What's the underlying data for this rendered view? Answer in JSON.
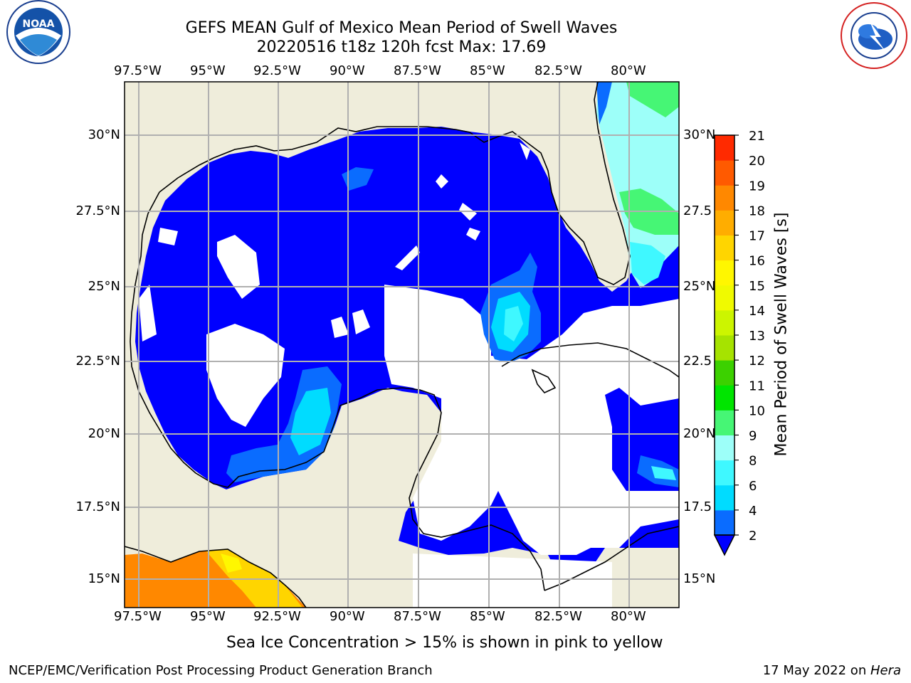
{
  "title_line1": "GEFS MEAN Gulf of Mexico Mean Period of Swell Waves",
  "title_line2": "20220516 t18z 120h fcst   Max: 17.69",
  "logos": {
    "left": "noaa-logo",
    "right": "nws-logo"
  },
  "map": {
    "lon_labels": [
      "97.5°W",
      "95°W",
      "92.5°W",
      "90°W",
      "87.5°W",
      "85°W",
      "82.5°W",
      "80°W"
    ],
    "lat_labels_left": [
      "30°N",
      "27.5°N",
      "25°N",
      "22.5°N",
      "20°N",
      "17.5°N",
      "15°N"
    ],
    "lat_labels_right": [
      "30°N",
      "27.5",
      "25°N",
      "22.5",
      "20°N",
      "17.5",
      "15°N"
    ],
    "colors": {
      "land": "#efeddb",
      "water_low": "#0000ff",
      "grid": "#b0b0b0"
    }
  },
  "colorbar": {
    "title": "Mean Period of Swell Waves [s]",
    "ticks": [
      "2",
      "4",
      "6",
      "8",
      "9",
      "10",
      "11",
      "12",
      "13",
      "14",
      "15",
      "16",
      "17",
      "18",
      "19",
      "20",
      "21"
    ],
    "colors": [
      "#0a6cff",
      "#00dcff",
      "#3ff8ff",
      "#9dfff9",
      "#46f675",
      "#00e500",
      "#3cd100",
      "#a6e300",
      "#ccf500",
      "#f0fa00",
      "#fff700",
      "#ffd500",
      "#ffad00",
      "#ff8800",
      "#ff5a00",
      "#ff2a00"
    ]
  },
  "caption": "Sea Ice Concentration > 15% is shown in pink to yellow",
  "footer_left": "NCEP/EMC/Verification Post Processing Product Generation Branch",
  "footer_date": "17 May 2022 on ",
  "footer_host": "Hera"
}
